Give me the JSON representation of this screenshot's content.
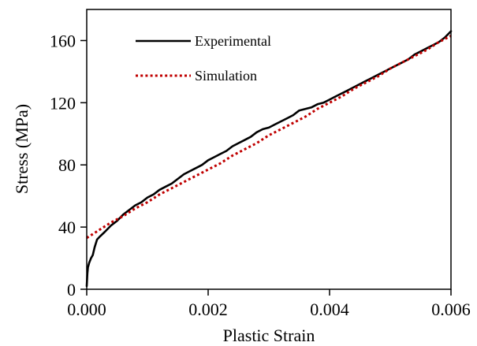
{
  "chart_data": {
    "type": "line",
    "xlabel": "Plastic Strain",
    "ylabel": "Stress (MPa)",
    "xlim": [
      0,
      0.006
    ],
    "ylim": [
      0,
      180
    ],
    "x_ticks": [
      0.0,
      0.002,
      0.004,
      0.006
    ],
    "x_tick_labels": [
      "0.000",
      "0.002",
      "0.004",
      "0.006"
    ],
    "y_ticks": [
      0,
      40,
      80,
      120,
      160
    ],
    "y_tick_labels": [
      "0",
      "40",
      "80",
      "120",
      "160"
    ],
    "grid": false,
    "legend_position": "top-left",
    "series": [
      {
        "name": "Experimental",
        "color": "#000000",
        "style": "solid",
        "x": [
          0.0,
          1e-05,
          2e-05,
          4e-05,
          7e-05,
          0.0001,
          0.00013,
          0.00017,
          0.00022,
          0.0003,
          0.0004,
          0.0005,
          0.0006,
          0.0007,
          0.0008,
          0.0009,
          0.001,
          0.0011,
          0.0012,
          0.0013,
          0.0014,
          0.0015,
          0.0016,
          0.0017,
          0.0018,
          0.0019,
          0.002,
          0.0021,
          0.0022,
          0.0023,
          0.0024,
          0.0025,
          0.0026,
          0.0027,
          0.0028,
          0.0029,
          0.003,
          0.0031,
          0.0032,
          0.0033,
          0.0034,
          0.0035,
          0.0036,
          0.0037,
          0.0038,
          0.0039,
          0.004,
          0.0041,
          0.0042,
          0.0043,
          0.0044,
          0.0045,
          0.0046,
          0.0047,
          0.0048,
          0.0049,
          0.005,
          0.0051,
          0.0052,
          0.0053,
          0.0054,
          0.0055,
          0.0056,
          0.0057,
          0.0058,
          0.0059,
          0.006
        ],
        "y": [
          2,
          10,
          14,
          17,
          20,
          22,
          27,
          32,
          34,
          37,
          41,
          44,
          48,
          51,
          54,
          56,
          59,
          61,
          64,
          66,
          68,
          71,
          74,
          76,
          78,
          80,
          83,
          85,
          87,
          89,
          92,
          94,
          96,
          98,
          101,
          103,
          104,
          106,
          108,
          110,
          112,
          115,
          116,
          117,
          119,
          120,
          122,
          124,
          126,
          128,
          130,
          132,
          134,
          136,
          138,
          140,
          142,
          144,
          146,
          148,
          151,
          153,
          155,
          157,
          159,
          162,
          166
        ]
      },
      {
        "name": "Simulation",
        "color": "#c00000",
        "style": "dotted",
        "x": [
          0.0,
          0.0002,
          0.0004,
          0.0006,
          0.0008,
          0.001,
          0.0012,
          0.0014,
          0.0016,
          0.0018,
          0.002,
          0.0022,
          0.0024,
          0.0026,
          0.0028,
          0.003,
          0.0032,
          0.0034,
          0.0036,
          0.0038,
          0.004,
          0.0042,
          0.0044,
          0.0046,
          0.0048,
          0.005,
          0.0052,
          0.0054,
          0.0056,
          0.0058,
          0.006
        ],
        "y": [
          33,
          38,
          43,
          47,
          52,
          56,
          61,
          65,
          69,
          73,
          77,
          81,
          86,
          90,
          94,
          99,
          103,
          107,
          111,
          116,
          120,
          124,
          129,
          133,
          137,
          142,
          146,
          150,
          154,
          159,
          163
        ]
      }
    ]
  }
}
